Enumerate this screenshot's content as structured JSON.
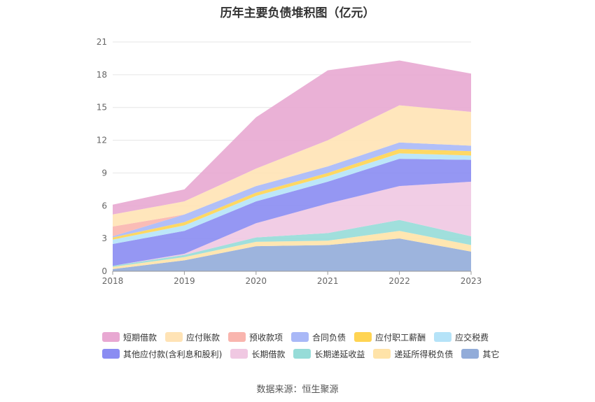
{
  "chart_data": {
    "type": "area",
    "stacked": true,
    "title": "历年主要负债堆积图（亿元）",
    "source": "数据来源：恒生聚源",
    "x": [
      "2018",
      "2019",
      "2020",
      "2021",
      "2022",
      "2023"
    ],
    "ylim": [
      0,
      21
    ],
    "yticks": [
      "0",
      "3",
      "6",
      "9",
      "12",
      "15",
      "18",
      "21"
    ],
    "grid": true,
    "legend_position": "bottom",
    "series": [
      {
        "name": "其它",
        "color": "#92acd9",
        "values": [
          0.2,
          1.0,
          2.3,
          2.4,
          3.0,
          1.8
        ]
      },
      {
        "name": "递延所得税负债",
        "color": "#ffe3a8",
        "values": [
          0.2,
          0.3,
          0.4,
          0.4,
          0.7,
          0.6
        ]
      },
      {
        "name": "长期递延收益",
        "color": "#96dcd8",
        "values": [
          0.1,
          0.2,
          0.4,
          0.7,
          1.0,
          0.8
        ]
      },
      {
        "name": "长期借款",
        "color": "#f0c8e2",
        "values": [
          0.0,
          0.1,
          1.3,
          2.7,
          3.1,
          5.0
        ]
      },
      {
        "name": "其他应付款(含利息和股利)",
        "color": "#8a8cf2",
        "values": [
          2.0,
          2.1,
          2.0,
          2.0,
          2.5,
          2.0
        ]
      },
      {
        "name": "应交税费",
        "color": "#b5e3f8",
        "values": [
          0.4,
          0.5,
          0.5,
          0.5,
          0.5,
          0.4
        ]
      },
      {
        "name": "应付职工薪酬",
        "color": "#ffd452",
        "values": [
          0.2,
          0.3,
          0.3,
          0.3,
          0.4,
          0.4
        ]
      },
      {
        "name": "合同负债",
        "color": "#a9b8f7",
        "values": [
          0.1,
          0.7,
          0.6,
          0.6,
          0.6,
          0.5
        ]
      },
      {
        "name": "预收款项",
        "color": "#f9b5ae",
        "values": [
          0.9,
          0.0,
          0.0,
          0.0,
          0.0,
          0.0
        ]
      },
      {
        "name": "应付账款",
        "color": "#ffe3b5",
        "values": [
          1.1,
          1.2,
          1.6,
          2.4,
          3.4,
          3.1
        ]
      },
      {
        "name": "短期借款",
        "color": "#e8a8d2",
        "values": [
          0.9,
          1.1,
          4.7,
          6.4,
          4.1,
          3.5
        ]
      }
    ],
    "legend_rows": [
      [
        "短期借款",
        "应付账款",
        "预收款项",
        "合同负债",
        "应付职工薪酬",
        "应交税费"
      ],
      [
        "其他应付款(含利息和股利)",
        "长期借款",
        "长期递延收益",
        "递延所得税负债",
        "其它"
      ]
    ]
  }
}
